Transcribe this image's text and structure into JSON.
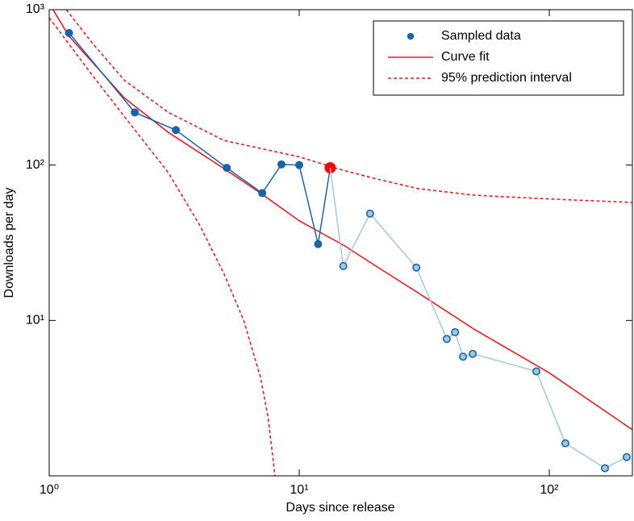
{
  "chart_data": {
    "type": "line",
    "x_label": "Days since release",
    "y_label": "Downloads per day",
    "log_x": true,
    "log_y": true,
    "xlim": [
      1,
      215
    ],
    "ylim": [
      1,
      1000
    ],
    "xticks": [
      {
        "value": 1,
        "label": "10⁰"
      },
      {
        "value": 10,
        "label": "10¹"
      },
      {
        "value": 100,
        "label": "10²"
      }
    ],
    "yticks": [
      {
        "value": 10,
        "label": "10¹"
      },
      {
        "value": 100,
        "label": "10²"
      },
      {
        "value": 1000,
        "label": "10³"
      }
    ],
    "legend": "upper right",
    "series": [
      {
        "name": "Sampled data",
        "color": "#1764ab",
        "style": "solid",
        "marker": true,
        "highlight_index": 8,
        "highlight_color": "#ff0000",
        "x": [
          1.2,
          2.2,
          3.21,
          5.13,
          7.11,
          8.49,
          10,
          11.9,
          13.3
        ],
        "values": [
          708,
          218,
          168,
          96,
          66,
          101,
          100,
          31,
          96
        ]
      },
      {
        "color": "#9ecae1",
        "marker_edge": "#1764ab",
        "style": "solid",
        "marker": true,
        "connect_from_previous": true,
        "x": [
          15.0,
          19.2,
          29.4,
          38.9,
          42.0,
          45.2,
          49.4,
          88.8,
          116,
          167,
          204
        ],
        "values": [
          22.4,
          48.7,
          21.9,
          7.6,
          8.4,
          5.85,
          6.1,
          4.7,
          1.62,
          1.12,
          1.32
        ]
      },
      {
        "name": "Curve fit",
        "color": "#ee1c1c",
        "style": "solid",
        "x": [
          1,
          1.2,
          2,
          3,
          5,
          7,
          10,
          15,
          20,
          30,
          50,
          100,
          215
        ],
        "values": [
          1100,
          675,
          270,
          162,
          95,
          66,
          43.8,
          30.6,
          22.7,
          15,
          8.8,
          4.6,
          1.98
        ]
      },
      {
        "name": "95% prediction interval",
        "color": "#ee1c1c",
        "style": "dashed",
        "x": [
          1.17,
          1.5,
          2,
          3,
          5,
          10,
          15,
          20,
          30,
          50,
          100,
          215
        ],
        "values": [
          1000,
          600,
          351,
          218,
          144,
          113,
          92.5,
          82,
          70.5,
          64,
          60.5,
          57.5
        ]
      },
      {
        "color": "#ee1c1c",
        "style": "dashed",
        "x": [
          1,
          1.2,
          1.5,
          2,
          3,
          4,
          5,
          6,
          7,
          7.5,
          8
        ],
        "values": [
          888,
          600,
          372,
          205,
          89,
          41,
          20,
          10,
          4.3,
          2.4,
          1.0
        ]
      }
    ]
  }
}
